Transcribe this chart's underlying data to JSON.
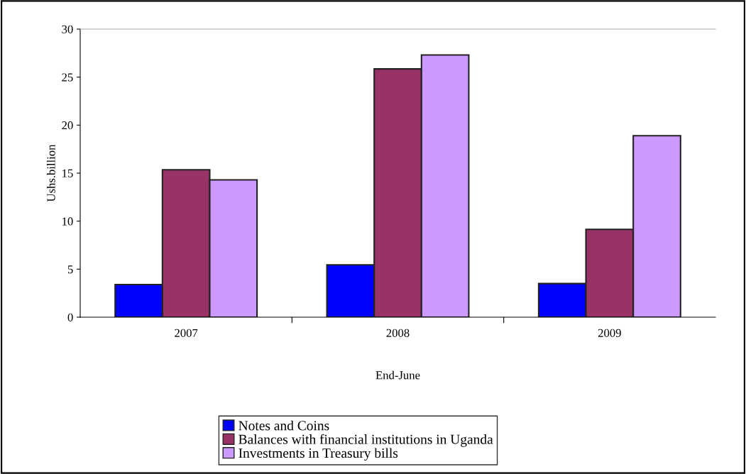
{
  "chart_data": {
    "type": "bar",
    "xlabel": "End-June",
    "ylabel": "Ushs.billion",
    "categories": [
      "2007",
      "2008",
      "2009"
    ],
    "series": [
      {
        "name": "Notes and Coins",
        "color": "#0000ff",
        "values": [
          3.4,
          5.45,
          3.5
        ]
      },
      {
        "name": "Balances with financial institutions in Uganda",
        "color": "#993366",
        "values": [
          15.35,
          25.85,
          9.15
        ]
      },
      {
        "name": "Investments in Treasury bills",
        "color": "#cc99ff",
        "values": [
          14.3,
          27.3,
          18.9
        ]
      }
    ],
    "ylim": [
      0,
      30
    ],
    "yticks": [
      0,
      5,
      10,
      15,
      20,
      25,
      30
    ],
    "grid": false,
    "legend": "bottom"
  }
}
